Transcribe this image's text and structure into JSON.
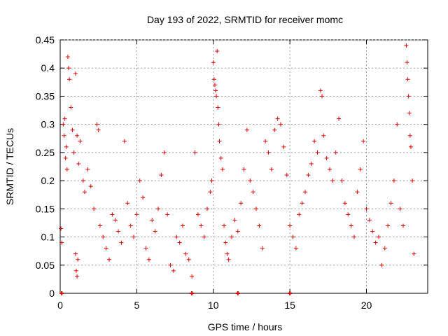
{
  "chart_data": {
    "type": "scatter",
    "title": "Day 193 of 2022, SRMTID for receiver momc",
    "xlabel": "GPS time / hours",
    "ylabel": "SRMTID / TECUs",
    "xlim": [
      0,
      24
    ],
    "ylim": [
      0,
      0.45
    ],
    "xticks": [
      0,
      5,
      10,
      15,
      20
    ],
    "yticks": [
      0,
      0.05,
      0.1,
      0.15,
      0.2,
      0.25,
      0.3,
      0.35,
      0.4,
      0.45
    ],
    "grid": true,
    "legend": "none",
    "marker": "plus",
    "color": "#e00000",
    "series": [
      {
        "points": [
          [
            0.05,
            0.115
          ],
          [
            0.1,
            0.09
          ],
          [
            0.2,
            0.3
          ],
          [
            0.25,
            0.28
          ],
          [
            0.3,
            0.31
          ],
          [
            0.35,
            0.24
          ],
          [
            0.4,
            0.26
          ],
          [
            0.45,
            0.22
          ],
          [
            0.5,
            0.42
          ],
          [
            0.55,
            0.4
          ],
          [
            0.6,
            0.38
          ],
          [
            0.7,
            0.33
          ],
          [
            0.8,
            0.29
          ],
          [
            0.9,
            0.25
          ],
          [
            1.0,
            0.39
          ],
          [
            1.1,
            0.28
          ],
          [
            1.2,
            0.23
          ],
          [
            1.3,
            0.27
          ],
          [
            1.5,
            0.2
          ],
          [
            1.6,
            0.18
          ],
          [
            1.0,
            0.07
          ],
          [
            1.05,
            0.04
          ],
          [
            1.1,
            0.03
          ],
          [
            1.15,
            0.06
          ],
          [
            1.8,
            0.22
          ],
          [
            2.0,
            0.19
          ],
          [
            2.2,
            0.15
          ],
          [
            2.4,
            0.3
          ],
          [
            2.5,
            0.29
          ],
          [
            2.6,
            0.12
          ],
          [
            2.8,
            0.1
          ],
          [
            3.0,
            0.08
          ],
          [
            3.2,
            0.06
          ],
          [
            3.4,
            0.14
          ],
          [
            3.6,
            0.13
          ],
          [
            3.8,
            0.11
          ],
          [
            4.0,
            0.09
          ],
          [
            4.2,
            0.27
          ],
          [
            4.4,
            0.16
          ],
          [
            4.6,
            0.12
          ],
          [
            4.8,
            0.1
          ],
          [
            5.0,
            0.14
          ],
          [
            5.2,
            0.2
          ],
          [
            5.4,
            0.17
          ],
          [
            5.6,
            0.08
          ],
          [
            5.8,
            0.06
          ],
          [
            6.0,
            0.13
          ],
          [
            6.2,
            0.11
          ],
          [
            6.4,
            0.15
          ],
          [
            6.6,
            0.21
          ],
          [
            6.8,
            0.25
          ],
          [
            7.0,
            0.14
          ],
          [
            7.2,
            0.05
          ],
          [
            7.4,
            0.04
          ],
          [
            7.6,
            0.1
          ],
          [
            7.8,
            0.09
          ],
          [
            8.0,
            0.12
          ],
          [
            8.2,
            0.07
          ],
          [
            8.4,
            0.06
          ],
          [
            8.6,
            0.03
          ],
          [
            8.8,
            0.25
          ],
          [
            9.0,
            0.14
          ],
          [
            9.2,
            0.12
          ],
          [
            9.4,
            0.1
          ],
          [
            9.6,
            0.15
          ],
          [
            9.8,
            0.18
          ],
          [
            9.9,
            0.2
          ],
          [
            10.0,
            0.41
          ],
          [
            10.05,
            0.38
          ],
          [
            10.1,
            0.37
          ],
          [
            10.15,
            0.36
          ],
          [
            10.2,
            0.35
          ],
          [
            10.25,
            0.43
          ],
          [
            10.3,
            0.33
          ],
          [
            10.35,
            0.3
          ],
          [
            10.4,
            0.27
          ],
          [
            10.5,
            0.24
          ],
          [
            10.6,
            0.22
          ],
          [
            10.7,
            0.12
          ],
          [
            10.8,
            0.09
          ],
          [
            10.9,
            0.07
          ],
          [
            11.0,
            0.06
          ],
          [
            11.2,
            0.1
          ],
          [
            11.4,
            0.13
          ],
          [
            11.6,
            0.11
          ],
          [
            11.8,
            0.16
          ],
          [
            12.0,
            0.22
          ],
          [
            12.2,
            0.29
          ],
          [
            12.4,
            0.2
          ],
          [
            12.6,
            0.18
          ],
          [
            12.8,
            0.15
          ],
          [
            13.0,
            0.12
          ],
          [
            13.2,
            0.08
          ],
          [
            13.4,
            0.27
          ],
          [
            13.6,
            0.25
          ],
          [
            13.8,
            0.22
          ],
          [
            14.0,
            0.29
          ],
          [
            14.2,
            0.31
          ],
          [
            14.4,
            0.3
          ],
          [
            14.6,
            0.26
          ],
          [
            14.8,
            0.21
          ],
          [
            15.0,
            0.12
          ],
          [
            15.2,
            0.1
          ],
          [
            15.4,
            0.08
          ],
          [
            15.6,
            0.14
          ],
          [
            15.8,
            0.16
          ],
          [
            16.0,
            0.18
          ],
          [
            16.2,
            0.21
          ],
          [
            16.4,
            0.23
          ],
          [
            16.6,
            0.27
          ],
          [
            16.8,
            0.25
          ],
          [
            17.0,
            0.36
          ],
          [
            17.1,
            0.35
          ],
          [
            17.2,
            0.28
          ],
          [
            17.4,
            0.24
          ],
          [
            17.6,
            0.22
          ],
          [
            17.8,
            0.2
          ],
          [
            18.0,
            0.25
          ],
          [
            18.2,
            0.31
          ],
          [
            18.4,
            0.2
          ],
          [
            18.6,
            0.16
          ],
          [
            18.8,
            0.14
          ],
          [
            19.0,
            0.12
          ],
          [
            19.2,
            0.1
          ],
          [
            19.4,
            0.18
          ],
          [
            19.6,
            0.22
          ],
          [
            19.8,
            0.27
          ],
          [
            20.0,
            0.15
          ],
          [
            20.2,
            0.13
          ],
          [
            20.4,
            0.11
          ],
          [
            20.6,
            0.09
          ],
          [
            20.8,
            0.1
          ],
          [
            21.0,
            0.05
          ],
          [
            21.2,
            0.08
          ],
          [
            21.4,
            0.12
          ],
          [
            21.6,
            0.16
          ],
          [
            21.8,
            0.2
          ],
          [
            22.0,
            0.3
          ],
          [
            22.2,
            0.15
          ],
          [
            22.4,
            0.12
          ],
          [
            22.6,
            0.44
          ],
          [
            22.65,
            0.41
          ],
          [
            22.7,
            0.38
          ],
          [
            22.75,
            0.35
          ],
          [
            22.8,
            0.32
          ],
          [
            22.85,
            0.28
          ],
          [
            22.9,
            0.26
          ],
          [
            23.0,
            0.2
          ],
          [
            23.1,
            0.07
          ]
        ]
      },
      {
        "zero_points": [
          [
            0.1,
            0
          ],
          [
            8.6,
            0
          ],
          [
            11.6,
            0
          ],
          [
            15.0,
            0
          ]
        ]
      }
    ]
  }
}
